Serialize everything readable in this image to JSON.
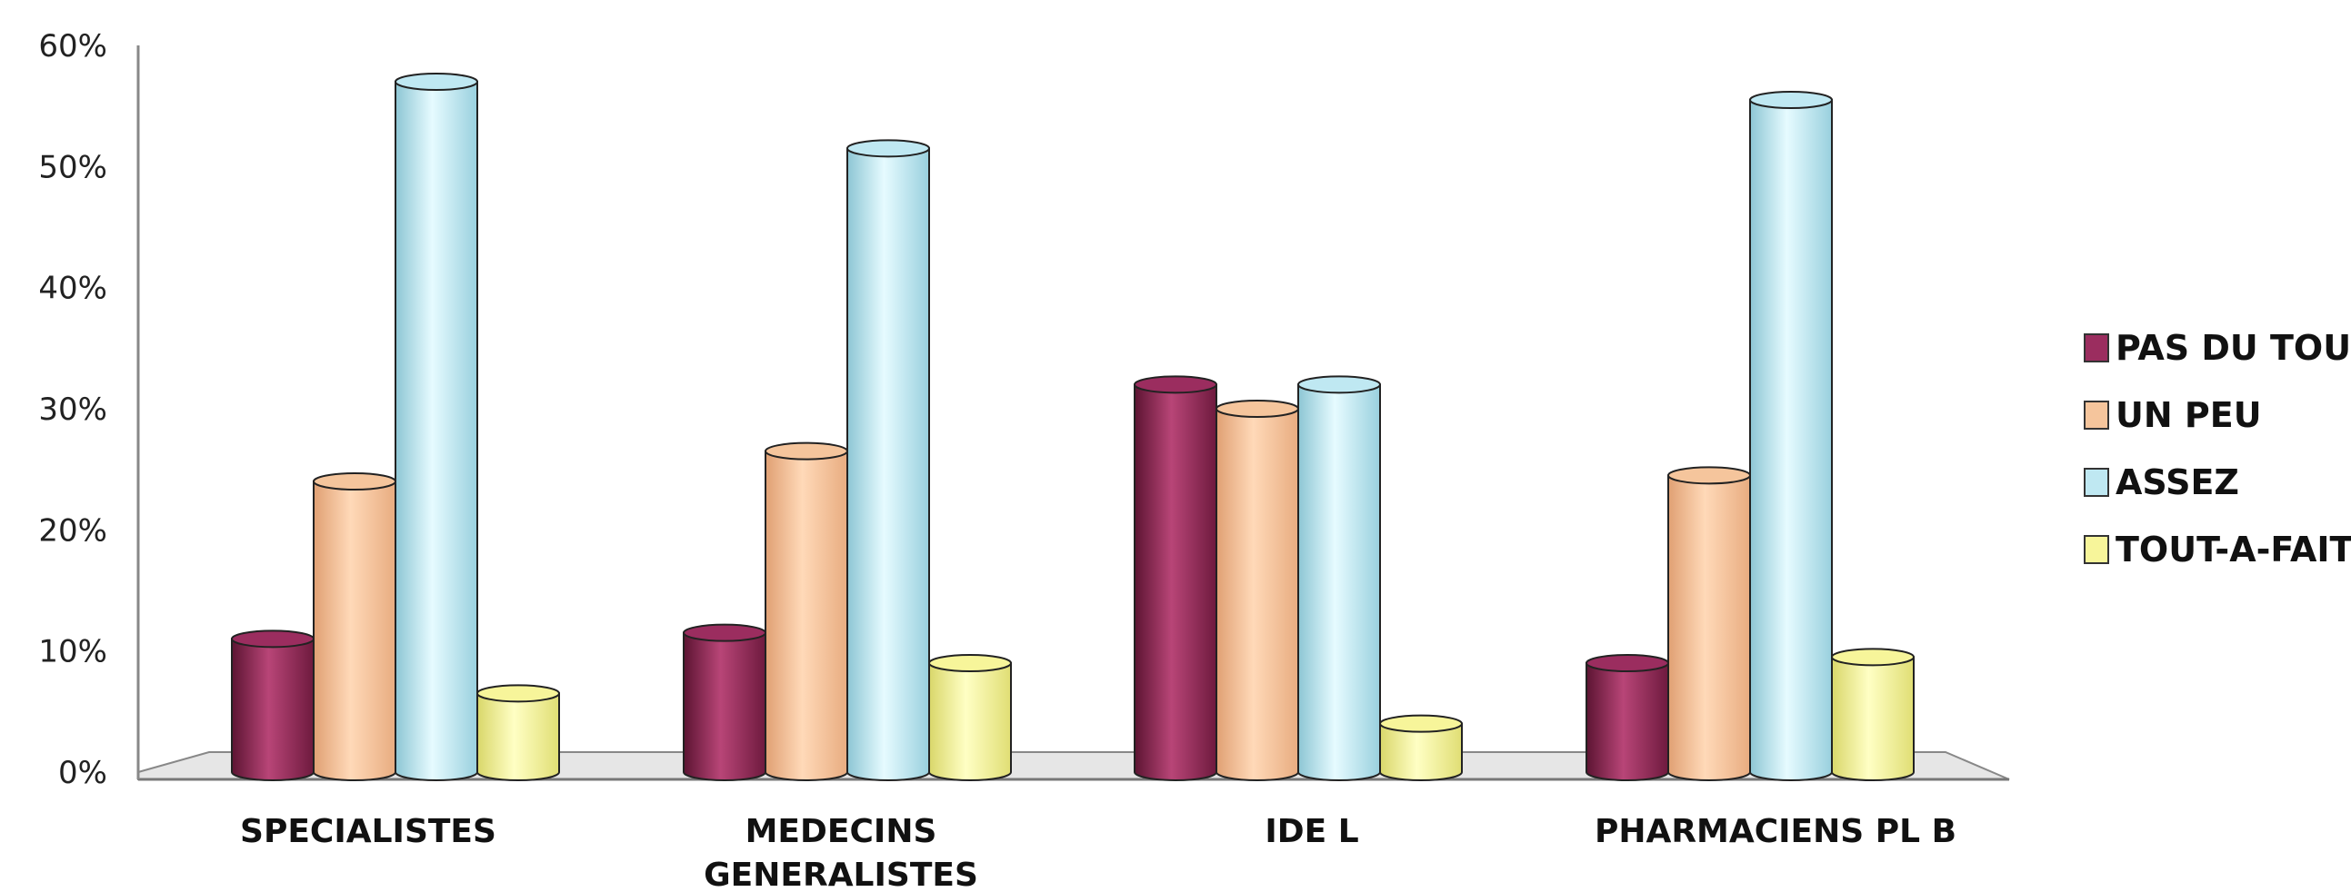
{
  "chart_data": {
    "type": "bar",
    "title": "",
    "xlabel": "",
    "ylabel": "",
    "ylim": [
      0,
      0.6
    ],
    "yticks": [
      "0%",
      "10%",
      "20%",
      "30%",
      "40%",
      "50%",
      "60%"
    ],
    "categories": [
      "SPECIALISTES",
      "MEDECINS GENERALISTES",
      "IDE L",
      "PHARMACIENS PL B"
    ],
    "category_lines": [
      [
        "SPECIALISTES"
      ],
      [
        "MEDECINS",
        "GENERALISTES"
      ],
      [
        "IDE L"
      ],
      [
        "PHARMACIENS PL B"
      ]
    ],
    "series": [
      {
        "name": "PAS DU TOUT",
        "color": "#9b2d5f",
        "values": [
          0.11,
          0.115,
          0.32,
          0.09
        ]
      },
      {
        "name": "UN PEU",
        "color": "#f5c59c",
        "values": [
          0.24,
          0.265,
          0.3,
          0.245
        ]
      },
      {
        "name": "ASSEZ",
        "color": "#bfe8f2",
        "values": [
          0.57,
          0.515,
          0.32,
          0.555
        ]
      },
      {
        "name": "TOUT-A-FAIT",
        "color": "#f7f59a",
        "values": [
          0.065,
          0.09,
          0.04,
          0.095
        ]
      }
    ],
    "legend_position": "right",
    "grid": false,
    "style": "3d-cylinder"
  }
}
